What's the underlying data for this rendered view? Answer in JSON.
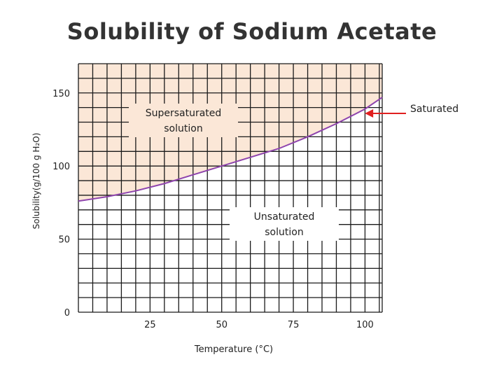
{
  "page": {
    "title": "Solubility of Sodium Acetate"
  },
  "chart_data": {
    "type": "line",
    "title": "Solubility of Sodium Acetate",
    "xlabel": "Temperature (°C)",
    "ylabel": "Solubility(g/100 g H₂O)",
    "xlim": [
      0,
      106
    ],
    "ylim": [
      0,
      170
    ],
    "x_ticks": [
      25,
      50,
      75,
      100
    ],
    "x_tick_labels": [
      "25",
      "50",
      "75",
      "100"
    ],
    "y_ticks": [
      0,
      50,
      100,
      150
    ],
    "y_tick_labels": [
      "0",
      "50",
      "100",
      "150"
    ],
    "grid": true,
    "grid_step_x": 5,
    "grid_step_y": 10,
    "series": [
      {
        "name": "Saturated",
        "color": "#8e44ad",
        "x": [
          0,
          10,
          20,
          30,
          40,
          50,
          60,
          70,
          80,
          90,
          100,
          106
        ],
        "y": [
          76,
          79,
          83,
          88,
          94,
          100,
          106,
          112,
          120,
          129,
          139,
          147
        ]
      }
    ],
    "regions": [
      {
        "label_lines": [
          "Supersaturated",
          "solution"
        ],
        "fill": "#fbe7d7",
        "position": "above-curve"
      },
      {
        "label_lines": [
          "Unsaturated",
          "solution"
        ],
        "fill": "#ffffff",
        "position": "below-curve"
      }
    ],
    "annotations": [
      {
        "text": "Saturated",
        "arrow_color": "#e02020",
        "points_to_x": 97
      }
    ]
  }
}
